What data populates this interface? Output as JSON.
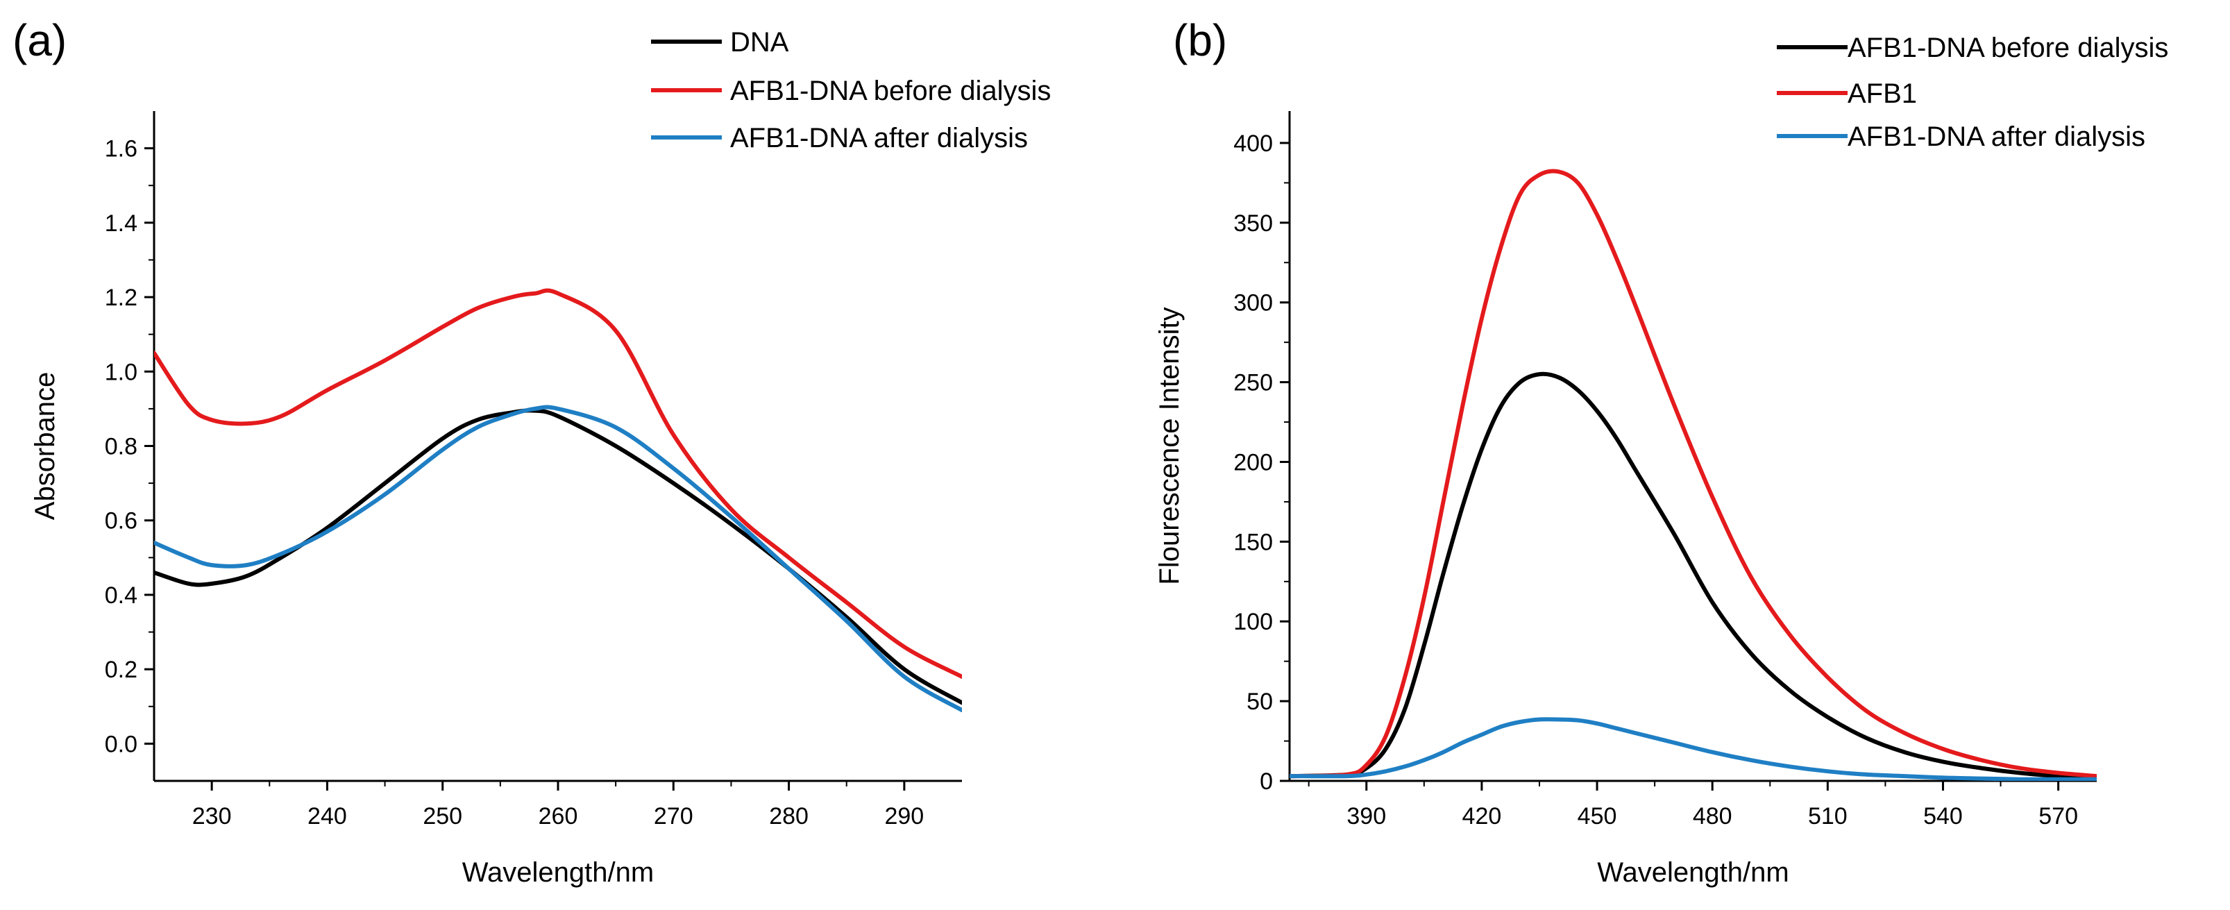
{
  "chart_data": [
    {
      "panel_label": "(a)",
      "type": "line",
      "title": "",
      "xlabel": "Wavelength/nm",
      "ylabel": "Absorbance",
      "xlim": [
        225,
        295
      ],
      "ylim": [
        -0.1,
        1.7
      ],
      "xticks": [
        230,
        240,
        250,
        260,
        270,
        280,
        290
      ],
      "xtick_labels": [
        "230",
        "240",
        "250",
        "260",
        "270",
        "280",
        "290"
      ],
      "yticks": [
        0.0,
        0.2,
        0.4,
        0.6,
        0.8,
        1.0,
        1.2,
        1.4,
        1.6
      ],
      "ytick_labels": [
        "0.0",
        "0.2",
        "0.4",
        "0.6",
        "0.8",
        "1.0",
        "1.2",
        "1.4",
        "1.6"
      ],
      "grid": false,
      "legend_position": "top-right",
      "x": [
        225,
        228,
        230,
        233,
        236,
        240,
        245,
        250,
        253,
        256,
        258,
        260,
        265,
        270,
        275,
        280,
        285,
        290,
        295
      ],
      "series": [
        {
          "name": "DNA",
          "color": "#000000",
          "values": [
            0.46,
            0.43,
            0.43,
            0.45,
            0.5,
            0.58,
            0.7,
            0.82,
            0.87,
            0.89,
            0.895,
            0.88,
            0.8,
            0.7,
            0.59,
            0.47,
            0.34,
            0.2,
            0.11
          ]
        },
        {
          "name": "AFB1-DNA before dialysis",
          "color": "#e41a1c",
          "values": [
            1.05,
            0.91,
            0.87,
            0.86,
            0.88,
            0.95,
            1.03,
            1.12,
            1.17,
            1.2,
            1.21,
            1.21,
            1.11,
            0.83,
            0.63,
            0.5,
            0.38,
            0.26,
            0.18
          ]
        },
        {
          "name": "AFB1-DNA after dialysis",
          "color": "#1f7fc4",
          "values": [
            0.54,
            0.5,
            0.48,
            0.48,
            0.51,
            0.57,
            0.67,
            0.79,
            0.85,
            0.885,
            0.9,
            0.9,
            0.85,
            0.74,
            0.61,
            0.47,
            0.33,
            0.18,
            0.09
          ]
        }
      ]
    },
    {
      "panel_label": "(b)",
      "type": "line",
      "title": "",
      "xlabel": "Wavelength/nm",
      "ylabel": "Flourescence Intensity",
      "xlim": [
        370,
        580
      ],
      "ylim": [
        0,
        420
      ],
      "xticks": [
        390,
        420,
        450,
        480,
        510,
        540,
        570
      ],
      "xtick_labels": [
        "390",
        "420",
        "450",
        "480",
        "510",
        "540",
        "570"
      ],
      "yticks": [
        0,
        50,
        100,
        150,
        200,
        250,
        300,
        350,
        400
      ],
      "ytick_labels": [
        "0",
        "50",
        "100",
        "150",
        "200",
        "250",
        "300",
        "350",
        "400"
      ],
      "grid": false,
      "legend_position": "top-right",
      "x": [
        370,
        385,
        390,
        395,
        400,
        405,
        410,
        415,
        420,
        425,
        430,
        435,
        440,
        445,
        450,
        455,
        460,
        470,
        480,
        490,
        500,
        510,
        520,
        530,
        540,
        550,
        560,
        570,
        580
      ],
      "series": [
        {
          "name": "AFB1-DNA before dialysis",
          "color": "#000000",
          "values": [
            3,
            4,
            8,
            20,
            45,
            85,
            130,
            172,
            208,
            235,
            250,
            255,
            253,
            245,
            232,
            215,
            195,
            155,
            112,
            80,
            57,
            40,
            27,
            18,
            12,
            8,
            5,
            3,
            2
          ]
        },
        {
          "name": "AFB1",
          "color": "#e41a1c",
          "values": [
            3,
            4,
            10,
            28,
            65,
            115,
            175,
            235,
            290,
            335,
            368,
            380,
            382,
            375,
            355,
            328,
            298,
            236,
            178,
            128,
            92,
            65,
            44,
            30,
            20,
            13,
            8,
            5,
            3
          ]
        },
        {
          "name": "AFB1-DNA after dialysis",
          "color": "#1f7fc4",
          "values": [
            3,
            3,
            4,
            6,
            9,
            13,
            18,
            24,
            29,
            34,
            37,
            38.5,
            38.5,
            38,
            36,
            33,
            30,
            24,
            18,
            13,
            9,
            6,
            4,
            3,
            2,
            1.5,
            1,
            1,
            1
          ]
        }
      ]
    }
  ]
}
